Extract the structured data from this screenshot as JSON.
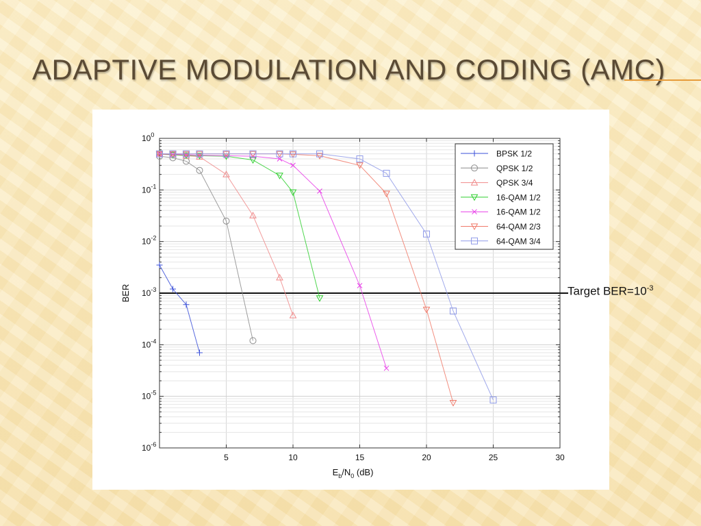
{
  "slide": {
    "title": "ADAPTIVE MODULATION AND CODING (AMC)",
    "annotation_text": "Target BER=10",
    "annotation_exp": "-3"
  },
  "chart_data": {
    "type": "line",
    "xlabel": "E_b/N_0 (dB)",
    "ylabel": "BER",
    "xlim": [
      0,
      30
    ],
    "ylim": [
      1e-06,
      1
    ],
    "yscale": "log",
    "grid": true,
    "legend_position": "top-right",
    "xticks": [
      5,
      10,
      15,
      20,
      25,
      30
    ],
    "yticks": [
      {
        "value": 1,
        "base": "10",
        "exp": "0"
      },
      {
        "value": 0.1,
        "base": "10",
        "exp": "-1"
      },
      {
        "value": 0.01,
        "base": "10",
        "exp": "-2"
      },
      {
        "value": 0.001,
        "base": "10",
        "exp": "-3"
      },
      {
        "value": 0.0001,
        "base": "10",
        "exp": "-4"
      },
      {
        "value": 1e-05,
        "base": "10",
        "exp": "-5"
      },
      {
        "value": 1e-06,
        "base": "10",
        "exp": "-6"
      }
    ],
    "target_ber": 0.001,
    "series": [
      {
        "name": "BPSK 1/2",
        "color": "#3a4fd8",
        "marker": "plus",
        "x": [
          0,
          1,
          2,
          3
        ],
        "y": [
          0.0035,
          0.0012,
          0.0006,
          7e-05
        ]
      },
      {
        "name": "QPSK 1/2",
        "color": "#8c8c8c",
        "marker": "circle",
        "x": [
          0,
          1,
          2,
          3,
          5,
          7
        ],
        "y": [
          0.45,
          0.42,
          0.36,
          0.24,
          0.025,
          0.00012
        ]
      },
      {
        "name": "QPSK 3/4",
        "color": "#f08a8a",
        "marker": "triangle-up",
        "x": [
          0,
          1,
          2,
          3,
          5,
          7,
          9,
          10
        ],
        "y": [
          0.49,
          0.48,
          0.46,
          0.44,
          0.2,
          0.032,
          0.002,
          0.00037
        ]
      },
      {
        "name": "16-QAM 1/2",
        "color": "#2fcf2f",
        "marker": "triangle-down",
        "x": [
          0,
          1,
          2,
          3,
          5,
          7,
          9,
          10,
          12
        ],
        "y": [
          0.5,
          0.48,
          0.47,
          0.46,
          0.45,
          0.38,
          0.19,
          0.09,
          0.0008
        ]
      },
      {
        "name": "16-QAM 1/2",
        "color": "#e83ee8",
        "marker": "x",
        "x": [
          0,
          1,
          2,
          3,
          5,
          7,
          9,
          10,
          12,
          15,
          17
        ],
        "y": [
          0.5,
          0.49,
          0.48,
          0.47,
          0.46,
          0.45,
          0.4,
          0.3,
          0.095,
          0.0014,
          3.5e-05
        ]
      },
      {
        "name": "64-QAM 2/3",
        "color": "#f07a6a",
        "marker": "triangle-down",
        "x": [
          0,
          1,
          2,
          3,
          5,
          7,
          9,
          10,
          12,
          15,
          17,
          20,
          22
        ],
        "y": [
          0.5,
          0.5,
          0.5,
          0.5,
          0.5,
          0.5,
          0.5,
          0.49,
          0.46,
          0.3,
          0.085,
          0.00048,
          7.5e-06
        ]
      },
      {
        "name": "64-QAM 3/4",
        "color": "#8f9ae8",
        "marker": "square",
        "x": [
          0,
          1,
          2,
          3,
          5,
          7,
          9,
          10,
          12,
          15,
          17,
          20,
          22,
          25
        ],
        "y": [
          0.5,
          0.5,
          0.5,
          0.5,
          0.5,
          0.5,
          0.5,
          0.5,
          0.5,
          0.4,
          0.21,
          0.014,
          0.00045,
          8.5e-06
        ]
      }
    ]
  }
}
